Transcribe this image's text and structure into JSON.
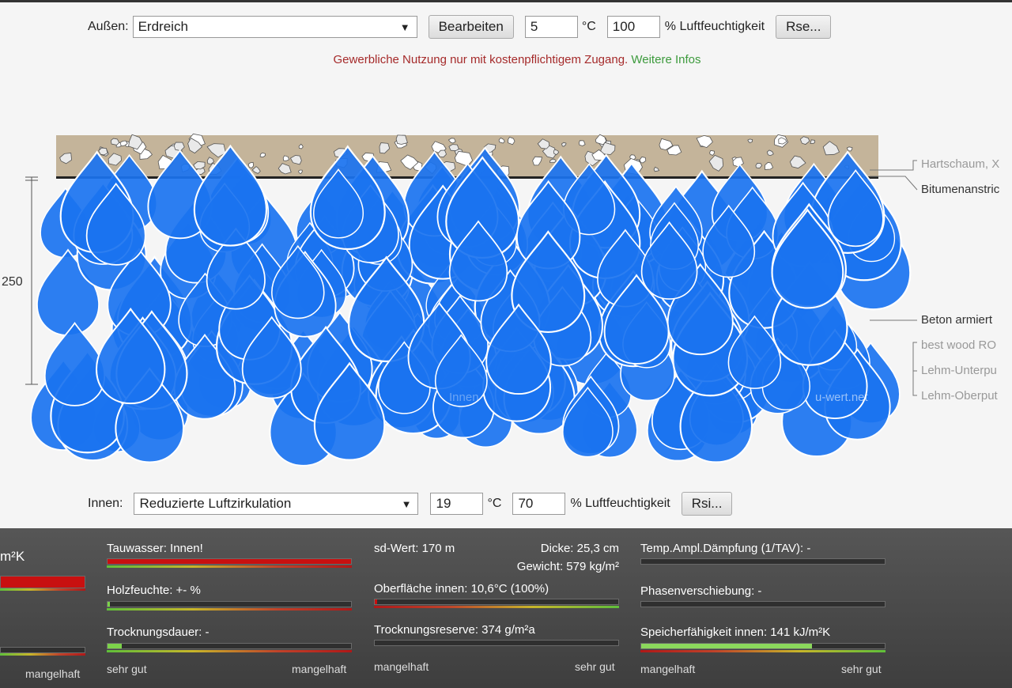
{
  "outside": {
    "label": "Außen:",
    "select_value": "Erdreich",
    "edit_button": "Bearbeiten",
    "temperature": "5",
    "temp_unit": "°C",
    "humidity": "100",
    "humidity_label": "% Luftfeuchtigkeit",
    "rse_button": "Rse..."
  },
  "notice": {
    "text": "Gewerbliche Nutzung nur mit kostenpflichtigem Zugang.",
    "link": "Weitere Infos",
    "text_color": "#a52a2a",
    "link_color": "#3c9a3c"
  },
  "diagram": {
    "dimension": "250",
    "inner_watermark": "Innen",
    "brand_watermark": "u-wert.net",
    "drop_color": "#1a73f0",
    "soil_color": "#c4b49a",
    "layers": [
      "Hartschaum, X",
      "Bitumenanstric",
      "Beton armiert",
      "best wood RO",
      "Lehm-Unterpu",
      "Lehm-Oberput"
    ]
  },
  "inside": {
    "label": "Innen:",
    "select_value": "Reduzierte Luftzirkulation",
    "temperature": "19",
    "temp_unit": "°C",
    "humidity": "70",
    "humidity_label": "% Luftfeuchtigkeit",
    "rsi_button": "Rsi..."
  },
  "results": {
    "uvalue_unit_fragment": "m²K",
    "col0_bottom": "mangelhaft",
    "tauwasser": "Tauwasser: Innen!",
    "holzfeuchte": "Holzfeuchte: +- %",
    "trocknungsdauer": "Trocknungsdauer: -",
    "col1_left": "sehr gut",
    "col1_right": "mangelhaft",
    "sd_wert": "sd-Wert: 170 m",
    "dicke": "Dicke: 25,3 cm",
    "gewicht": "Gewicht: 579 kg/m²",
    "oberflaeche": "Oberfläche innen: 10,6°C (100%)",
    "trocknungsreserve": "Trocknungsreserve: 374 g/m²a",
    "col2_left": "mangelhaft",
    "col2_right": "sehr gut",
    "temp_amp": "Temp.Ampl.Dämpfung (1/TAV): -",
    "phasen": "Phasenverschiebung: -",
    "speicher": "Speicherfähigkeit innen: 141 kJ/m²K",
    "col3_left": "mangelhaft",
    "col3_right": "sehr gut",
    "levels": {
      "uvalue": 1.0,
      "tauwasser": 1.0,
      "holzfeuchte": 0.01,
      "trocknungsdauer": 0.06,
      "oberflaeche": 0.01,
      "trocknungsreserve": 0.0,
      "temp_amp": 0.0,
      "phasen": 0.0,
      "speicher": 0.7
    }
  }
}
